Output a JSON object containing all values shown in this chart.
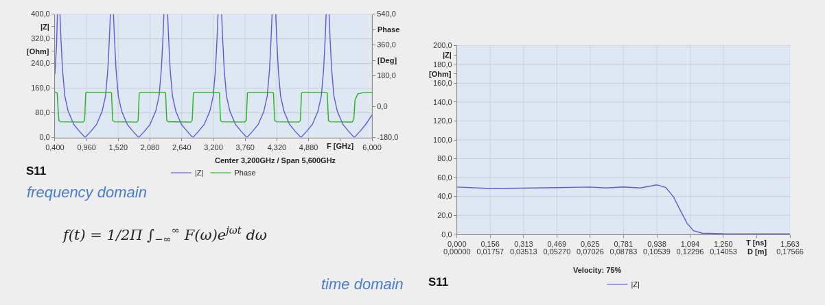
{
  "chart_data": [
    {
      "type": "line",
      "xlabel": "F [GHz]",
      "ylabel": "|Z|\n[Ohm]",
      "y2label": "Phase\n[Deg]",
      "annotations": [
        "Center 3,200GHz / Span 5,600GHz",
        "S11"
      ],
      "xlim": [
        0.4,
        6.0
      ],
      "xticks": [
        {
          "value": 0.4,
          "label": "0,400"
        },
        {
          "value": 0.96,
          "label": "0,960"
        },
        {
          "value": 1.52,
          "label": "1,520"
        },
        {
          "value": 2.08,
          "label": "2,080"
        },
        {
          "value": 2.64,
          "label": "2,640"
        },
        {
          "value": 3.2,
          "label": "3,200"
        },
        {
          "value": 3.76,
          "label": "3,760"
        },
        {
          "value": 4.32,
          "label": "4,320"
        },
        {
          "value": 4.88,
          "label": "4,880"
        },
        {
          "value": 5.44,
          "label": null
        },
        {
          "value": 6.0,
          "label": "6,000"
        }
      ],
      "ylim": [
        0,
        400
      ],
      "yticks": [
        {
          "value": 0,
          "label": "0,0"
        },
        {
          "value": 80,
          "label": "80,0"
        },
        {
          "value": 160,
          "label": "160,0"
        },
        {
          "value": 240,
          "label": "240,0"
        },
        {
          "value": 280,
          "label": null
        },
        {
          "value": 320,
          "label": "320,0"
        },
        {
          "value": 360,
          "label": null
        },
        {
          "value": 400,
          "label": "400,0"
        }
      ],
      "y2lim": [
        -180,
        540
      ],
      "y2ticks": [
        {
          "value": -180,
          "label": "-180,0"
        },
        {
          "value": 0,
          "label": "0,0"
        },
        {
          "value": 180,
          "label": "180,0"
        },
        {
          "value": 270,
          "label": null
        },
        {
          "value": 360,
          "label": "360,0"
        },
        {
          "value": 450,
          "label": null
        },
        {
          "value": 540,
          "label": "540,0"
        }
      ],
      "grid": true,
      "legend": "bottom",
      "line_style": "solid",
      "series": [
        {
          "name": "|Z|",
          "color": "#5a5ad6",
          "x": [
            0.4,
            0.43,
            0.445,
            0.46,
            0.49,
            0.505,
            0.535,
            0.575,
            0.635,
            0.735,
            0.835,
            0.935,
            1.035,
            1.135,
            1.235,
            1.295,
            1.335,
            1.365,
            1.38,
            1.41,
            1.435,
            1.45,
            1.48,
            1.52,
            1.58,
            1.68,
            1.78,
            1.88,
            1.98,
            2.08,
            2.18,
            2.24,
            2.28,
            2.31,
            2.325,
            2.36,
            2.391,
            2.406,
            2.436,
            2.476,
            2.536,
            2.636,
            2.736,
            2.836,
            2.936,
            3.036,
            3.136,
            3.196,
            3.236,
            3.266,
            3.281,
            3.31,
            3.345,
            3.36,
            3.39,
            3.43,
            3.49,
            3.59,
            3.69,
            3.79,
            3.89,
            3.99,
            4.09,
            4.15,
            4.19,
            4.22,
            4.235,
            4.27,
            4.3,
            4.315,
            4.345,
            4.385,
            4.445,
            4.545,
            4.645,
            4.745,
            4.845,
            4.945,
            5.045,
            5.105,
            5.145,
            5.175,
            5.19,
            5.22,
            5.242,
            5.257,
            5.287,
            5.327,
            5.387,
            5.487,
            5.587,
            5.687,
            5.787,
            5.887,
            6.0
          ],
          "values": [
            205,
            300,
            400,
            null,
            400,
            330,
            220,
            135,
            85,
            42,
            20,
            0,
            20,
            42,
            85,
            135,
            220,
            330,
            400,
            null,
            400,
            330,
            220,
            135,
            85,
            42,
            20,
            0,
            20,
            42,
            85,
            135,
            220,
            330,
            400,
            null,
            400,
            330,
            220,
            135,
            85,
            42,
            20,
            0,
            20,
            42,
            85,
            135,
            220,
            330,
            400,
            null,
            400,
            330,
            220,
            135,
            85,
            42,
            20,
            0,
            20,
            42,
            85,
            135,
            220,
            330,
            400,
            null,
            400,
            330,
            220,
            135,
            85,
            42,
            20,
            0,
            20,
            42,
            85,
            135,
            220,
            330,
            400,
            null,
            400,
            330,
            220,
            135,
            85,
            42,
            20,
            0,
            20,
            42,
            73
          ]
        },
        {
          "name": "Phase",
          "color": "#1fb41f",
          "axis": "y2",
          "x": [
            0.4,
            0.44,
            0.455,
            0.47,
            0.5,
            0.9,
            0.925,
            0.935,
            0.945,
            0.98,
            1.38,
            1.4,
            1.41,
            1.42,
            1.45,
            1.85,
            1.87,
            1.88,
            1.89,
            1.92,
            2.33,
            2.355,
            2.365,
            2.375,
            2.4,
            2.8,
            2.825,
            2.836,
            2.846,
            2.88,
            3.28,
            3.305,
            3.315,
            3.325,
            3.35,
            3.75,
            3.78,
            3.79,
            3.8,
            3.84,
            4.23,
            4.26,
            4.27,
            4.28,
            4.31,
            4.71,
            4.735,
            4.745,
            4.755,
            4.79,
            5.18,
            5.21,
            5.22,
            5.23,
            5.26,
            5.65,
            5.68,
            5.7,
            5.75,
            5.85,
            6.0
          ],
          "values": [
            84,
            80,
            0,
            -80,
            -88,
            -90,
            -80,
            0,
            80,
            84,
            84,
            80,
            0,
            -80,
            -88,
            -90,
            -80,
            0,
            80,
            84,
            84,
            80,
            0,
            -80,
            -88,
            -90,
            -80,
            0,
            80,
            84,
            84,
            80,
            0,
            -80,
            -88,
            -90,
            -80,
            0,
            80,
            84,
            84,
            80,
            0,
            -80,
            -88,
            -90,
            -80,
            0,
            80,
            84,
            84,
            80,
            0,
            -80,
            -88,
            -90,
            -70,
            40,
            75,
            82,
            84
          ]
        }
      ]
    },
    {
      "type": "line",
      "xlabel": "T [ns]",
      "x2label": "D [m]",
      "ylabel": "|Z|\n[Ohm]",
      "annotations": [
        "Velocity: 75%",
        "S11"
      ],
      "xlim": [
        0,
        1.563
      ],
      "xticks": [
        {
          "value": 0,
          "label": "0,000"
        },
        {
          "value": 0.156,
          "label": "0,156"
        },
        {
          "value": 0.313,
          "label": "0,313"
        },
        {
          "value": 0.469,
          "label": "0,469"
        },
        {
          "value": 0.625,
          "label": "0,625"
        },
        {
          "value": 0.781,
          "label": "0,781"
        },
        {
          "value": 0.938,
          "label": "0,938"
        },
        {
          "value": 1.094,
          "label": "1,094"
        },
        {
          "value": 1.25,
          "label": "1,250"
        },
        {
          "value": 1.406,
          "label": null
        },
        {
          "value": 1.563,
          "label": "1,563"
        }
      ],
      "x2lim": [
        0,
        0.17566
      ],
      "x2ticks": [
        {
          "value": 0,
          "label": "0,00000"
        },
        {
          "value": 0.01757,
          "label": "0,01757"
        },
        {
          "value": 0.03513,
          "label": "0,03513"
        },
        {
          "value": 0.0527,
          "label": "0,05270"
        },
        {
          "value": 0.07026,
          "label": "0,07026"
        },
        {
          "value": 0.08783,
          "label": "0,08783"
        },
        {
          "value": 0.10539,
          "label": "0,10539"
        },
        {
          "value": 0.12296,
          "label": "0,12296"
        },
        {
          "value": 0.14053,
          "label": "0,14053"
        },
        {
          "value": 0.1581,
          "label": null
        },
        {
          "value": 0.17566,
          "label": "0,17566"
        }
      ],
      "ylim": [
        0,
        200
      ],
      "yticks": [
        {
          "value": 0,
          "label": "0,0"
        },
        {
          "value": 20,
          "label": "20,0"
        },
        {
          "value": 40,
          "label": "40,0"
        },
        {
          "value": 60,
          "label": "60,0"
        },
        {
          "value": 80,
          "label": "80,0"
        },
        {
          "value": 100,
          "label": "100,0"
        },
        {
          "value": 120,
          "label": "120,0"
        },
        {
          "value": 140,
          "label": "140,0"
        },
        {
          "value": 160,
          "label": "160,0"
        },
        {
          "value": 170,
          "label": null
        },
        {
          "value": 180,
          "label": "180,0"
        },
        {
          "value": 190,
          "label": null
        },
        {
          "value": 200,
          "label": "200,0"
        }
      ],
      "grid": true,
      "legend": "bottom",
      "line_style": "solid",
      "series": [
        {
          "name": "|Z|",
          "color": "#5a5ad6",
          "x": [
            0,
            0.156,
            0.313,
            0.469,
            0.625,
            0.7,
            0.781,
            0.86,
            0.938,
            0.98,
            1.016,
            1.05,
            1.08,
            1.11,
            1.15,
            1.25,
            1.563
          ],
          "values": [
            50,
            48.4,
            48.8,
            49.3,
            50,
            49,
            50.1,
            49,
            52.3,
            49.5,
            39.7,
            24.4,
            11.5,
            3.7,
            1.1,
            0.5,
            0.3
          ]
        }
      ]
    },
    {
      "type": "other",
      "annotations": [
        "frequency domain",
        "f(t) = 1/2Π ∫$_{−∞}$$^{∞}$ F(ω)e$^{jωt}$ dω",
        "time domain"
      ]
    }
  ]
}
